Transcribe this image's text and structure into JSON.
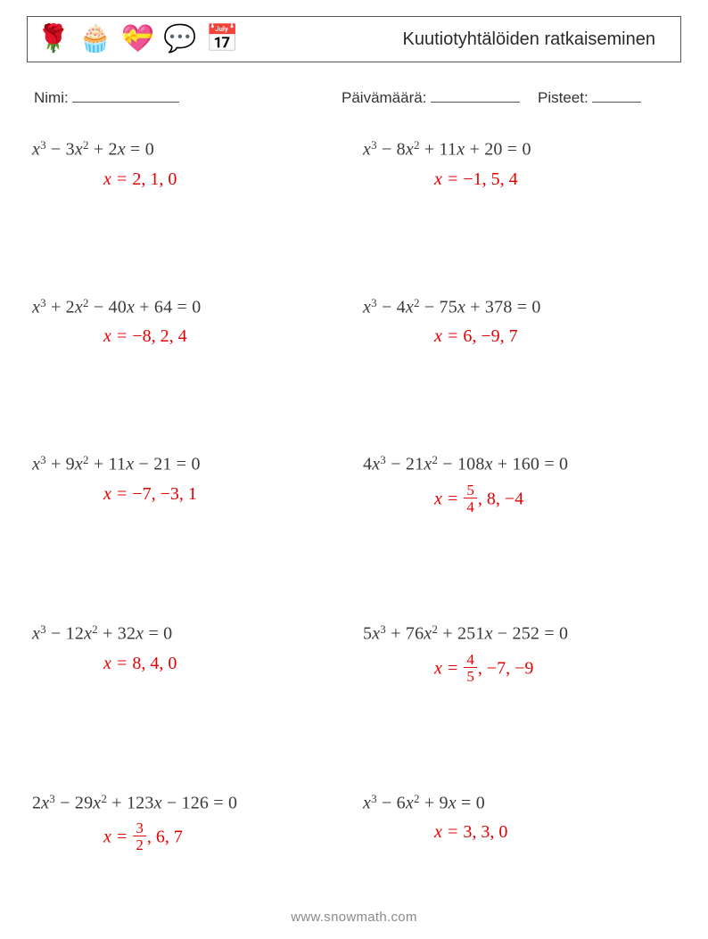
{
  "header": {
    "title": "Kuutiotyhtälöiden ratkaiseminen",
    "icons": [
      "🌹",
      "🧁",
      "💝",
      "💬",
      "📅"
    ]
  },
  "meta": {
    "name_label": "Nimi:",
    "date_label": "Päivämäärä:",
    "score_label": "Pisteet:"
  },
  "style": {
    "eq_color": "#3a3a3a",
    "ans_color": "#e60000",
    "font_eq": "Times New Roman, serif",
    "font_ui": "Segoe UI, Arial, sans-serif",
    "eq_fontsize": 20,
    "title_fontsize": 20
  },
  "problems": [
    {
      "equation_terms": [
        {
          "coef": "",
          "var": "x",
          "pow": "3"
        },
        {
          "op": "−",
          "coef": "3",
          "var": "x",
          "pow": "2"
        },
        {
          "op": "+",
          "coef": "2",
          "var": "x",
          "pow": ""
        }
      ],
      "rhs": "0",
      "answer_prefix": "x =",
      "answer": "2, 1, 0"
    },
    {
      "equation_terms": [
        {
          "coef": "",
          "var": "x",
          "pow": "3"
        },
        {
          "op": "−",
          "coef": "8",
          "var": "x",
          "pow": "2"
        },
        {
          "op": "+",
          "coef": "11",
          "var": "x",
          "pow": ""
        },
        {
          "op": "+",
          "coef": "20",
          "var": "",
          "pow": ""
        }
      ],
      "rhs": "0",
      "answer_prefix": "x =",
      "answer": "−1, 5, 4"
    },
    {
      "equation_terms": [
        {
          "coef": "",
          "var": "x",
          "pow": "3"
        },
        {
          "op": "+",
          "coef": "2",
          "var": "x",
          "pow": "2"
        },
        {
          "op": "−",
          "coef": "40",
          "var": "x",
          "pow": ""
        },
        {
          "op": "+",
          "coef": "64",
          "var": "",
          "pow": ""
        }
      ],
      "rhs": "0",
      "answer_prefix": "x =",
      "answer": "−8, 2, 4"
    },
    {
      "equation_terms": [
        {
          "coef": "",
          "var": "x",
          "pow": "3"
        },
        {
          "op": "−",
          "coef": "4",
          "var": "x",
          "pow": "2"
        },
        {
          "op": "−",
          "coef": "75",
          "var": "x",
          "pow": ""
        },
        {
          "op": "+",
          "coef": "378",
          "var": "",
          "pow": ""
        }
      ],
      "rhs": "0",
      "answer_prefix": "x =",
      "answer": "6, −9, 7"
    },
    {
      "equation_terms": [
        {
          "coef": "",
          "var": "x",
          "pow": "3"
        },
        {
          "op": "+",
          "coef": "9",
          "var": "x",
          "pow": "2"
        },
        {
          "op": "+",
          "coef": "11",
          "var": "x",
          "pow": ""
        },
        {
          "op": "−",
          "coef": "21",
          "var": "",
          "pow": ""
        }
      ],
      "rhs": "0",
      "answer_prefix": "x =",
      "answer": "−7, −3, 1"
    },
    {
      "equation_terms": [
        {
          "coef": "4",
          "var": "x",
          "pow": "3"
        },
        {
          "op": "−",
          "coef": "21",
          "var": "x",
          "pow": "2"
        },
        {
          "op": "−",
          "coef": "108",
          "var": "x",
          "pow": ""
        },
        {
          "op": "+",
          "coef": "160",
          "var": "",
          "pow": ""
        }
      ],
      "rhs": "0",
      "answer_prefix": "x =",
      "answer_frac": {
        "num": "5",
        "den": "4"
      },
      "answer_tail": ", 8, −4"
    },
    {
      "equation_terms": [
        {
          "coef": "",
          "var": "x",
          "pow": "3"
        },
        {
          "op": "−",
          "coef": "12",
          "var": "x",
          "pow": "2"
        },
        {
          "op": "+",
          "coef": "32",
          "var": "x",
          "pow": ""
        }
      ],
      "rhs": "0",
      "answer_prefix": "x =",
      "answer": "8, 4, 0"
    },
    {
      "equation_terms": [
        {
          "coef": "5",
          "var": "x",
          "pow": "3"
        },
        {
          "op": "+",
          "coef": "76",
          "var": "x",
          "pow": "2"
        },
        {
          "op": "+",
          "coef": "251",
          "var": "x",
          "pow": ""
        },
        {
          "op": "−",
          "coef": "252",
          "var": "",
          "pow": ""
        }
      ],
      "rhs": "0",
      "answer_prefix": "x =",
      "answer_frac": {
        "num": "4",
        "den": "5"
      },
      "answer_tail": ", −7, −9"
    },
    {
      "equation_terms": [
        {
          "coef": "2",
          "var": "x",
          "pow": "3"
        },
        {
          "op": "−",
          "coef": "29",
          "var": "x",
          "pow": "2"
        },
        {
          "op": "+",
          "coef": "123",
          "var": "x",
          "pow": ""
        },
        {
          "op": "−",
          "coef": "126",
          "var": "",
          "pow": ""
        }
      ],
      "rhs": "0",
      "answer_prefix": "x =",
      "answer_frac": {
        "num": "3",
        "den": "2"
      },
      "answer_tail": ", 6, 7"
    },
    {
      "equation_terms": [
        {
          "coef": "",
          "var": "x",
          "pow": "3"
        },
        {
          "op": "−",
          "coef": "6",
          "var": "x",
          "pow": "2"
        },
        {
          "op": "+",
          "coef": "9",
          "var": "x",
          "pow": ""
        }
      ],
      "rhs": "0",
      "answer_prefix": "x =",
      "answer": "3, 3, 0"
    }
  ],
  "footer": "www.snowmath.com"
}
